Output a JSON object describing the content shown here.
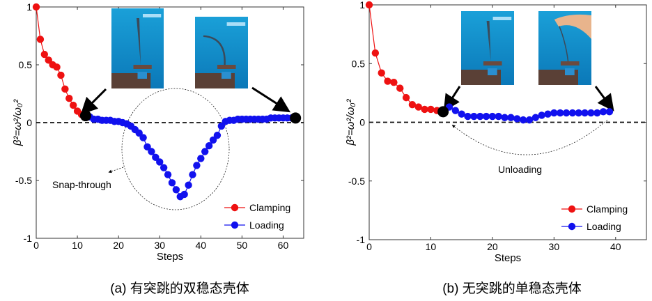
{
  "chart_data": [
    {
      "type": "line",
      "caption": "(a) 有突跳的双稳态壳体",
      "xlabel": "Steps",
      "ylabel": "β²=ω²/ω₀²",
      "xlim": [
        0,
        65
      ],
      "ylim": [
        -1,
        1
      ],
      "xticks": [
        "0",
        "10",
        "20",
        "30",
        "40",
        "50",
        "60"
      ],
      "yticks": [
        "-1",
        "-0.5",
        "0",
        "0.5",
        "1"
      ],
      "annotation": "Snap-through",
      "legend_position": "bottom-right",
      "series": [
        {
          "name": "Clamping",
          "color": "#ee1111",
          "x": [
            0,
            1,
            2,
            3,
            4,
            5,
            6,
            7,
            8,
            9,
            10,
            11,
            12
          ],
          "y": [
            1,
            0.72,
            0.59,
            0.54,
            0.5,
            0.48,
            0.41,
            0.29,
            0.21,
            0.15,
            0.1,
            0.07,
            0.06
          ]
        },
        {
          "name": "Loading",
          "color": "#1111ee",
          "x": [
            12,
            13,
            14,
            15,
            16,
            17,
            18,
            19,
            20,
            21,
            22,
            23,
            24,
            25,
            26,
            27,
            28,
            29,
            30,
            31,
            32,
            33,
            34,
            35,
            36,
            37,
            38,
            39,
            40,
            41,
            42,
            43,
            44,
            45,
            46,
            47,
            48,
            49,
            50,
            51,
            52,
            53,
            54,
            55,
            56,
            57,
            58,
            59,
            60,
            61,
            62,
            63
          ],
          "y": [
            0.06,
            0.05,
            0.03,
            0.03,
            0.02,
            0.02,
            0.02,
            0.01,
            0.01,
            0,
            -0.01,
            -0.03,
            -0.06,
            -0.09,
            -0.13,
            -0.21,
            -0.25,
            -0.3,
            -0.34,
            -0.39,
            -0.45,
            -0.52,
            -0.58,
            -0.64,
            -0.62,
            -0.54,
            -0.45,
            -0.37,
            -0.31,
            -0.25,
            -0.2,
            -0.15,
            -0.11,
            -0.03,
            0.01,
            0.02,
            0.02,
            0.03,
            0.03,
            0.03,
            0.03,
            0.03,
            0.03,
            0.03,
            0.03,
            0.04,
            0.04,
            0.04,
            0.04,
            0.04,
            0.04,
            0.04
          ]
        }
      ],
      "highlight_points": [
        [
          12,
          0.06
        ],
        [
          63,
          0.04
        ]
      ]
    },
    {
      "type": "line",
      "caption": "(b) 无突跳的单稳态壳体",
      "xlabel": "Steps",
      "ylabel": "β²=ω²/ω₀²",
      "xlim": [
        0,
        45
      ],
      "ylim": [
        -1,
        1
      ],
      "xticks": [
        "0",
        "10",
        "20",
        "30",
        "40"
      ],
      "yticks": [
        "-1",
        "-0.5",
        "0",
        "0.5",
        "1"
      ],
      "annotation": "Unloading",
      "legend_position": "bottom-right",
      "series": [
        {
          "name": "Clamping",
          "color": "#ee1111",
          "x": [
            0,
            1,
            2,
            3,
            4,
            5,
            6,
            7,
            8,
            9,
            10,
            11,
            12
          ],
          "y": [
            1,
            0.59,
            0.42,
            0.35,
            0.34,
            0.29,
            0.21,
            0.15,
            0.13,
            0.11,
            0.11,
            0.1,
            0.09
          ]
        },
        {
          "name": "Loading",
          "color": "#1111ee",
          "x": [
            12,
            13,
            14,
            15,
            16,
            17,
            18,
            19,
            20,
            21,
            22,
            23,
            24,
            25,
            26,
            27,
            28,
            29,
            30,
            31,
            32,
            33,
            34,
            35,
            36,
            37,
            38,
            39
          ],
          "y": [
            0.09,
            0.13,
            0.1,
            0.07,
            0.05,
            0.05,
            0.05,
            0.05,
            0.05,
            0.05,
            0.04,
            0.04,
            0.03,
            0.02,
            0.02,
            0.04,
            0.06,
            0.07,
            0.08,
            0.08,
            0.08,
            0.08,
            0.08,
            0.08,
            0.08,
            0.08,
            0.09,
            0.09
          ]
        }
      ],
      "highlight_points": [
        [
          12,
          0.09
        ]
      ]
    }
  ]
}
